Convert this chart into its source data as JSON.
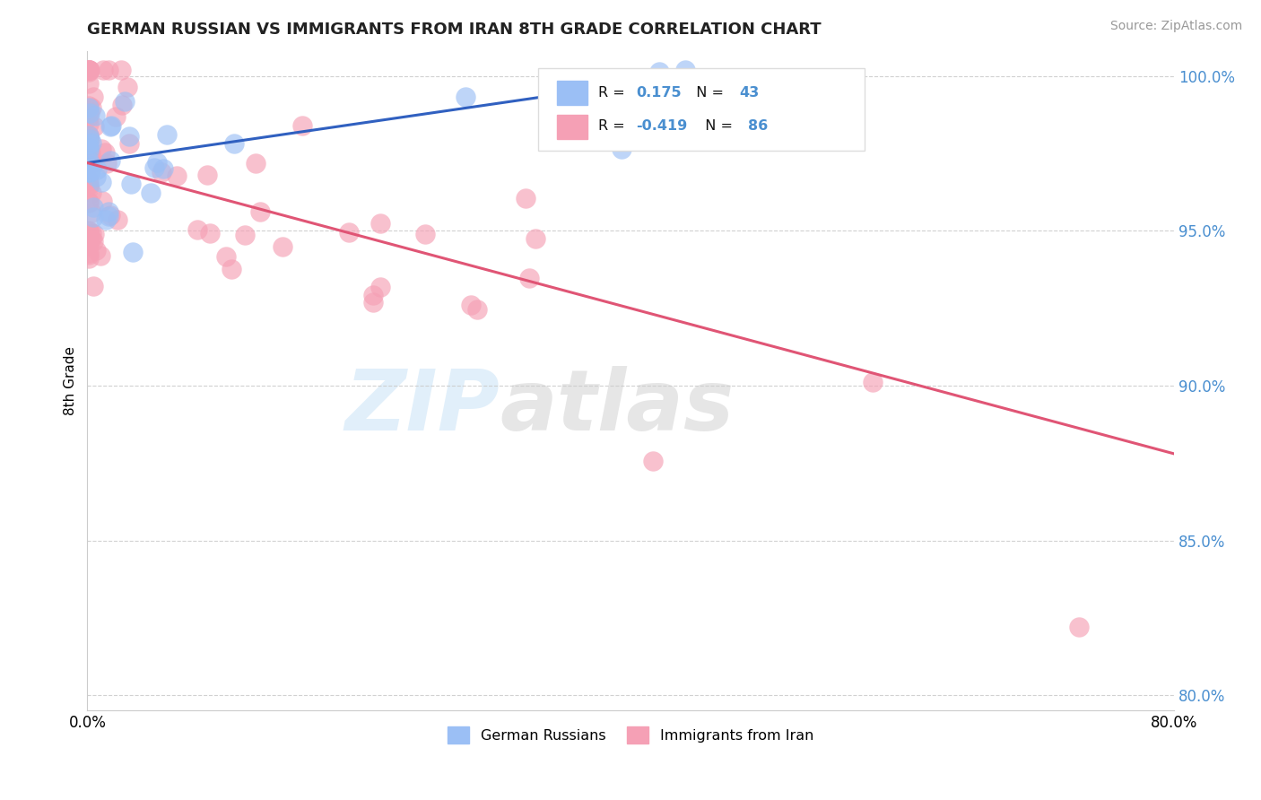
{
  "title": "GERMAN RUSSIAN VS IMMIGRANTS FROM IRAN 8TH GRADE CORRELATION CHART",
  "source": "Source: ZipAtlas.com",
  "ylabel": "8th Grade",
  "xlim": [
    0.0,
    0.8
  ],
  "ylim": [
    0.795,
    1.008
  ],
  "xticks": [
    0.0,
    0.1,
    0.2,
    0.3,
    0.4,
    0.5,
    0.6,
    0.7,
    0.8
  ],
  "xticklabels": [
    "0.0%",
    "",
    "",
    "",
    "",
    "",
    "",
    "",
    "80.0%"
  ],
  "yticks": [
    0.8,
    0.85,
    0.9,
    0.95,
    1.0
  ],
  "yticklabels": [
    "80.0%",
    "85.0%",
    "90.0%",
    "95.0%",
    "100.0%"
  ],
  "legend_bottom": [
    "German Russians",
    "Immigrants from Iran"
  ],
  "blue_color": "#9bbff5",
  "pink_color": "#f5a0b5",
  "blue_edge_color": "#7090e0",
  "pink_edge_color": "#e070a0",
  "blue_line_color": "#3060c0",
  "pink_line_color": "#e05575",
  "grid_color": "#cccccc",
  "background_color": "#ffffff",
  "r_blue": "0.175",
  "n_blue": "43",
  "r_pink": "-0.419",
  "n_pink": "86",
  "blue_line_x0": 0.0,
  "blue_line_y0": 0.972,
  "blue_line_x1": 0.44,
  "blue_line_y1": 1.0,
  "pink_line_x0": 0.0,
  "pink_line_y0": 0.972,
  "pink_line_x1": 0.8,
  "pink_line_y1": 0.878
}
